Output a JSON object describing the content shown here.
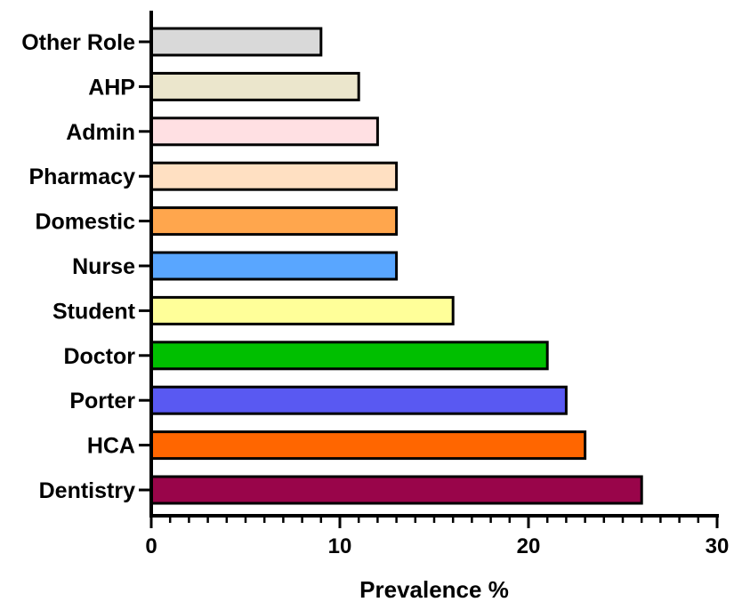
{
  "chart_data": {
    "type": "bar",
    "orientation": "horizontal",
    "title": "",
    "xlabel": "Prevalence  %",
    "ylabel": "",
    "xlim": [
      0,
      30
    ],
    "x_major_ticks": [
      0,
      10,
      20,
      30
    ],
    "x_tick_labels": [
      "0",
      "10",
      "20",
      "30"
    ],
    "x_minor_tick_step": 1,
    "grid": false,
    "legend": "none",
    "categories": [
      "Other Role",
      "AHP",
      "Admin",
      "Pharmacy",
      "Domestic",
      "Nurse",
      "Student",
      "Doctor",
      "Porter",
      "HCA",
      "Dentistry"
    ],
    "values": [
      9,
      11,
      12,
      13,
      13,
      13,
      16,
      21,
      22,
      23,
      26
    ],
    "colors": [
      "#d9d9d9",
      "#ebe6cc",
      "#ffe0e3",
      "#ffe0c2",
      "#ffa64d",
      "#59a6ff",
      "#ffff99",
      "#00bf00",
      "#5959f2",
      "#ff6600",
      "#99054a"
    ],
    "bar_outline_color": "#000000"
  }
}
